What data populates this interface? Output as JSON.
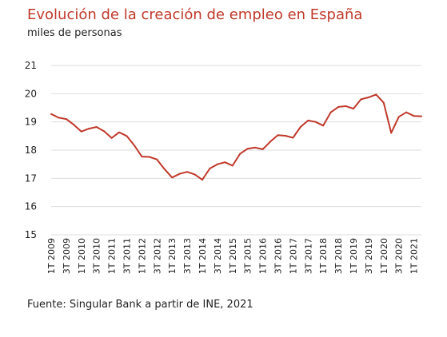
{
  "title": "Evolución de la creación de empleo en España",
  "subtitle": "miles de personas",
  "source": "Fuente: Singular Bank a partir de INE, 2021",
  "colors": {
    "title": "#c0392b",
    "line": "#c0392b",
    "grid": "#dddddd"
  },
  "chart_data": {
    "type": "line",
    "title": "Evolución de la creación de empleo en España",
    "xlabel": "",
    "ylabel": "miles de personas",
    "ylim": [
      15,
      21
    ],
    "yticks": [
      15,
      16,
      17,
      18,
      19,
      20,
      21
    ],
    "ytick_labels": [
      "15",
      "16",
      "17",
      "18",
      "19",
      "20",
      "21"
    ],
    "grid": true,
    "legend": "none",
    "x_labels": [
      "1T 2009",
      "3T 2009",
      "1T 2010",
      "3T 2010",
      "1T 2011",
      "3T 2011",
      "1T 2012",
      "3T 2012",
      "1T 2013",
      "3T 2013",
      "1T 2014",
      "3T 2014",
      "1T 2015",
      "3T 2015",
      "1T 2016",
      "3T 2016",
      "1T 2017",
      "3T 2017",
      "1T 2018",
      "3T 2018",
      "1T 2019",
      "3T 2019",
      "1T 2020",
      "3T 2020",
      "1T 2021"
    ],
    "x": [
      "1T 2009",
      "2T 2009",
      "3T 2009",
      "4T 2009",
      "1T 2010",
      "2T 2010",
      "3T 2010",
      "4T 2010",
      "1T 2011",
      "2T 2011",
      "3T 2011",
      "4T 2011",
      "1T 2012",
      "2T 2012",
      "3T 2012",
      "4T 2012",
      "1T 2013",
      "2T 2013",
      "3T 2013",
      "4T 2013",
      "1T 2014",
      "2T 2014",
      "3T 2014",
      "4T 2014",
      "1T 2015",
      "2T 2015",
      "3T 2015",
      "4T 2015",
      "1T 2016",
      "2T 2016",
      "3T 2016",
      "4T 2016",
      "1T 2017",
      "2T 2017",
      "3T 2017",
      "4T 2017",
      "1T 2018",
      "2T 2018",
      "3T 2018",
      "4T 2018",
      "1T 2019",
      "2T 2019",
      "3T 2019",
      "4T 2019",
      "1T 2020",
      "2T 2020",
      "3T 2020",
      "4T 2020",
      "1T 2021",
      "2T 2021"
    ],
    "values": [
      19.28,
      19.15,
      19.1,
      18.9,
      18.66,
      18.76,
      18.82,
      18.67,
      18.43,
      18.63,
      18.5,
      18.17,
      17.77,
      17.76,
      17.67,
      17.33,
      17.03,
      17.16,
      17.23,
      17.14,
      16.95,
      17.35,
      17.5,
      17.57,
      17.45,
      17.87,
      18.05,
      18.09,
      18.03,
      18.3,
      18.53,
      18.51,
      18.44,
      18.82,
      19.05,
      19.0,
      18.87,
      19.34,
      19.53,
      19.56,
      19.47,
      19.8,
      19.87,
      19.97,
      19.68,
      18.61,
      19.18,
      19.34,
      19.21,
      19.2
    ]
  }
}
